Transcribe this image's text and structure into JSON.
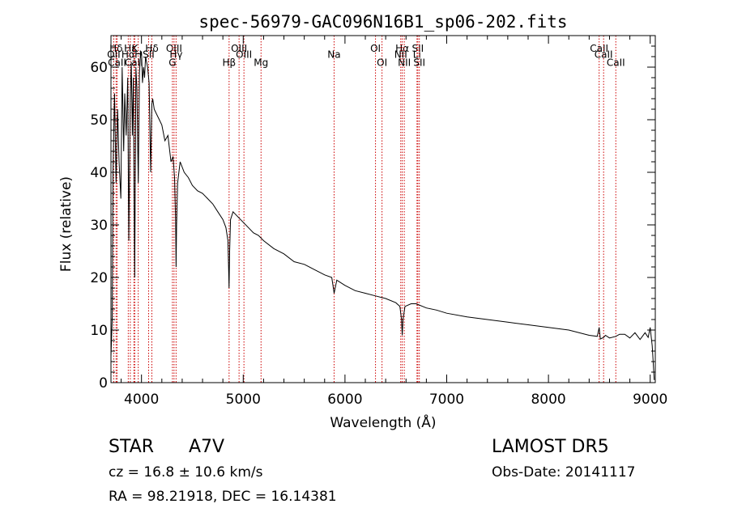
{
  "chart_data": {
    "type": "line",
    "title": "spec-56979-GAC096N16B1_sp06-202.fits",
    "xlabel": "Wavelength (Å)",
    "ylabel": "Flux (relative)",
    "xlim": [
      3700,
      9050
    ],
    "ylim": [
      0,
      66
    ],
    "xticks": [
      4000,
      5000,
      6000,
      7000,
      8000,
      9000
    ],
    "yticks": [
      0,
      10,
      20,
      30,
      40,
      50,
      60
    ],
    "line_color": "#000000",
    "marker_color": "#cc0000",
    "series": [
      {
        "x": [
          3700,
          3712,
          3720,
          3735,
          3750,
          3765,
          3780,
          3797,
          3810,
          3825,
          3835,
          3850,
          3865,
          3875,
          3889,
          3900,
          3910,
          3920,
          3933,
          3945,
          3955,
          3968,
          3980,
          3990,
          4000,
          4010,
          4020,
          4030,
          4040,
          4060,
          4075,
          4090,
          4102,
          4110,
          4125,
          4150,
          4175,
          4200,
          4230,
          4260,
          4290,
          4310,
          4325,
          4335,
          4340,
          4345,
          4355,
          4380,
          4420,
          4460,
          4500,
          4550,
          4600,
          4650,
          4700,
          4750,
          4800,
          4830,
          4850,
          4856,
          4861,
          4866,
          4875,
          4900,
          4950,
          5000,
          5050,
          5100,
          5150,
          5200,
          5300,
          5400,
          5500,
          5600,
          5700,
          5800,
          5870,
          5893,
          5920,
          6000,
          6100,
          6200,
          6300,
          6400,
          6500,
          6540,
          6556,
          6563,
          6570,
          6590,
          6650,
          6700,
          6800,
          6900,
          7000,
          7200,
          7400,
          7600,
          7800,
          8000,
          8200,
          8400,
          8480,
          8498,
          8510,
          8542,
          8560,
          8600,
          8662,
          8700,
          8750,
          8800,
          8850,
          8900,
          8950,
          8980,
          9000,
          9020,
          9040
        ],
        "values": [
          5,
          12,
          40,
          55,
          38,
          52,
          42,
          35,
          60,
          44,
          55,
          47,
          58,
          27,
          53,
          61,
          47,
          58,
          20,
          60,
          56,
          38,
          59,
          62,
          63,
          57,
          60,
          58,
          62,
          60,
          57,
          40,
          53,
          54,
          52,
          51,
          50,
          49,
          46,
          47,
          42,
          43,
          39,
          31,
          22,
          30,
          38,
          42,
          40,
          39,
          37.5,
          36.5,
          36,
          35,
          34,
          32.5,
          31,
          29.5,
          27,
          22,
          18,
          25,
          31,
          32.5,
          31.5,
          30.5,
          29.5,
          28.5,
          28,
          27,
          25.5,
          24.5,
          23,
          22.5,
          21.5,
          20.5,
          20,
          17,
          19.5,
          18.5,
          17.5,
          17,
          16.5,
          16,
          15.2,
          14.5,
          12,
          9,
          12,
          14.5,
          15,
          15,
          14.2,
          13.8,
          13.2,
          12.5,
          12,
          11.5,
          11,
          10.5,
          10,
          9,
          8.8,
          10.5,
          8.3,
          8.6,
          9,
          8.5,
          8.8,
          9.2,
          9.2,
          8.5,
          9.5,
          8.2,
          9.5,
          8.6,
          10.5,
          7,
          0.5
        ]
      }
    ],
    "lines": [
      {
        "name": "Hδ",
        "x": 3750,
        "label_y": 62.9
      },
      {
        "name": "OII",
        "x": 3727,
        "label_y": 61.8
      },
      {
        "name": "CaII",
        "x": 3760,
        "label_y": 60.2
      },
      {
        "name": "Hε",
        "x": 3890,
        "label_y": 62.9
      },
      {
        "name": "K",
        "x": 3934,
        "label_y": 62.9
      },
      {
        "name": "Hα",
        "x": 3870,
        "label_y": 61.8
      },
      {
        "name": "CaII",
        "x": 3925,
        "label_y": 60.2
      },
      {
        "name": "H",
        "x": 3968,
        "label_y": 61.8
      },
      {
        "name": "SII",
        "x": 4070,
        "label_y": 61.8
      },
      {
        "name": "Hδ",
        "x": 4102,
        "label_y": 62.9
      },
      {
        "name": "OIII",
        "x": 4320,
        "label_y": 62.9
      },
      {
        "name": "Hγ",
        "x": 4340,
        "label_y": 61.8
      },
      {
        "name": "G",
        "x": 4304,
        "label_y": 60.2
      },
      {
        "name": "OIII",
        "x": 4959,
        "label_y": 62.9
      },
      {
        "name": "OIII",
        "x": 5007,
        "label_y": 61.8
      },
      {
        "name": "Hβ",
        "x": 4861,
        "label_y": 60.2
      },
      {
        "name": "Mg",
        "x": 5175,
        "label_y": 60.2
      },
      {
        "name": "Na",
        "x": 5893,
        "label_y": 61.8
      },
      {
        "name": "OI",
        "x": 6300,
        "label_y": 62.9
      },
      {
        "name": "OI",
        "x": 6364,
        "label_y": 60.2
      },
      {
        "name": "Hα",
        "x": 6563,
        "label_y": 62.9
      },
      {
        "name": "NII",
        "x": 6548,
        "label_y": 61.8
      },
      {
        "name": "NII",
        "x": 6583,
        "label_y": 60.2
      },
      {
        "name": "SII",
        "x": 6716,
        "label_y": 62.9
      },
      {
        "name": "Li",
        "x": 6708,
        "label_y": 61.8
      },
      {
        "name": "SII",
        "x": 6731,
        "label_y": 60.2
      },
      {
        "name": "CaII",
        "x": 8498,
        "label_y": 62.9
      },
      {
        "name": "CaII",
        "x": 8542,
        "label_y": 61.8
      },
      {
        "name": "CaII",
        "x": 8662,
        "label_y": 60.2
      }
    ]
  },
  "info": {
    "object_class": "STAR",
    "subclass": "A7V",
    "survey": "LAMOST DR5",
    "redshift": "cz = 16.8 ± 10.6 km/s",
    "obs_date": "Obs-Date: 20141117",
    "coords": "RA =  98.21918, DEC =  16.14381"
  }
}
